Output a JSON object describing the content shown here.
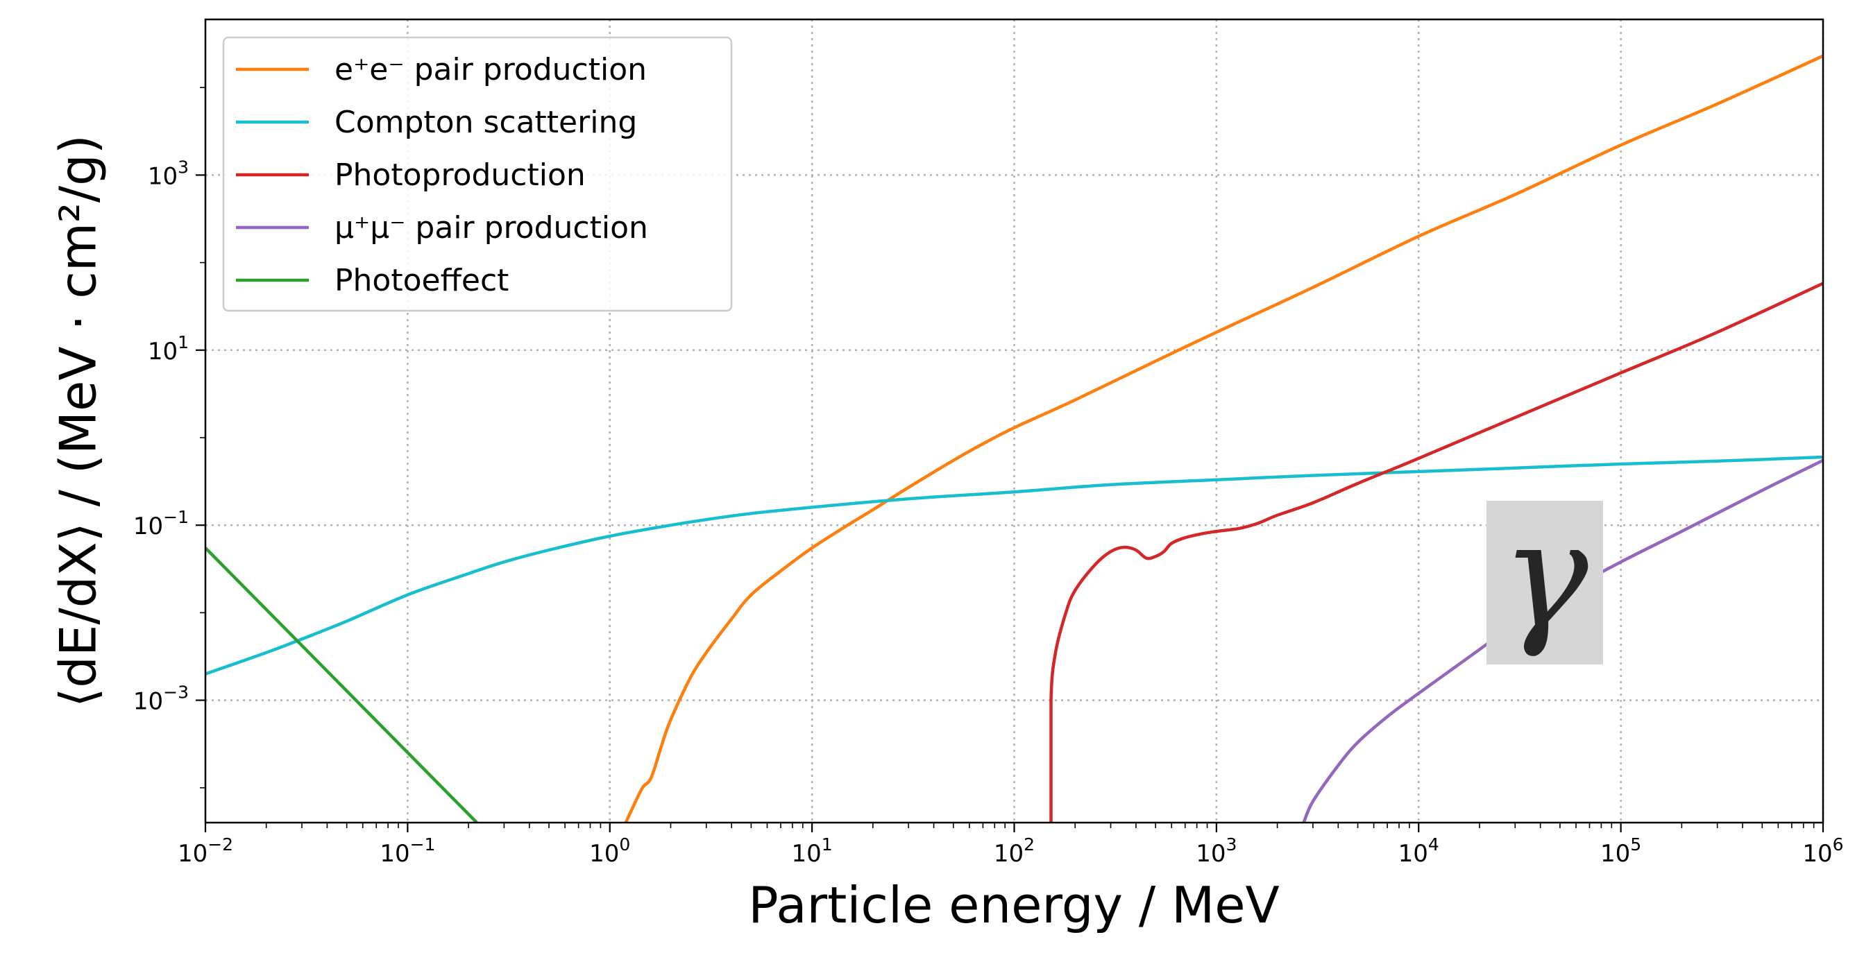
{
  "chart_data": {
    "type": "line",
    "xlabel": "Particle energy / MeV",
    "ylabel": "⟨dE/dX⟩ / (MeV · cm²/g)",
    "x_scale": "log",
    "y_scale": "log",
    "xlim": [
      0.01,
      1000000
    ],
    "ylim": [
      4e-05,
      60000
    ],
    "grid": true,
    "legend_position": "top-left",
    "x_ticks": [
      {
        "value": 0.01,
        "base": "10",
        "exp": "−2"
      },
      {
        "value": 0.1,
        "base": "10",
        "exp": "−1"
      },
      {
        "value": 1,
        "base": "10",
        "exp": "0"
      },
      {
        "value": 10,
        "base": "10",
        "exp": "1"
      },
      {
        "value": 100,
        "base": "10",
        "exp": "2"
      },
      {
        "value": 1000,
        "base": "10",
        "exp": "3"
      },
      {
        "value": 10000,
        "base": "10",
        "exp": "4"
      },
      {
        "value": 100000,
        "base": "10",
        "exp": "5"
      },
      {
        "value": 1000000,
        "base": "10",
        "exp": "6"
      }
    ],
    "y_ticks": [
      {
        "value": 0.001,
        "base": "10",
        "exp": "−3"
      },
      {
        "value": 0.1,
        "base": "10",
        "exp": "−1"
      },
      {
        "value": 10,
        "base": "10",
        "exp": "1"
      },
      {
        "value": 1000,
        "base": "10",
        "exp": "3"
      }
    ],
    "annotation": "γ",
    "series": [
      {
        "name": "e⁺e⁻ pair production",
        "color": "#ff7f0e",
        "x": [
          1.2,
          1.3,
          1.45,
          1.6,
          1.8,
          2.0,
          2.5,
          3.0,
          4.0,
          5.0,
          7.0,
          10,
          15,
          20,
          30,
          50,
          70,
          100,
          200,
          500,
          1000,
          3000,
          10000,
          30000,
          100000,
          300000,
          1000000
        ],
        "y": [
          4e-05,
          6e-05,
          0.0001,
          0.00013,
          0.0003,
          0.0006,
          0.0018,
          0.0035,
          0.0085,
          0.016,
          0.03,
          0.055,
          0.1,
          0.15,
          0.27,
          0.55,
          0.85,
          1.3,
          2.7,
          7.5,
          16,
          52,
          200,
          600,
          2200,
          6500,
          23000
        ]
      },
      {
        "name": "Compton scattering",
        "color": "#17becf",
        "x": [
          0.01,
          0.02,
          0.03,
          0.05,
          0.1,
          0.2,
          0.3,
          0.5,
          1,
          2,
          3,
          5,
          10,
          30,
          100,
          300,
          1000,
          3000,
          10000,
          30000,
          100000,
          300000,
          1000000
        ],
        "y": [
          0.002,
          0.0035,
          0.005,
          0.008,
          0.016,
          0.028,
          0.038,
          0.052,
          0.075,
          0.1,
          0.116,
          0.136,
          0.16,
          0.2,
          0.24,
          0.29,
          0.33,
          0.37,
          0.41,
          0.45,
          0.5,
          0.54,
          0.6
        ]
      },
      {
        "name": "Photoproduction",
        "color": "#d62728",
        "x": [
          152,
          152,
          160,
          180,
          200,
          250,
          300,
          350,
          400,
          450,
          500,
          550,
          600,
          700,
          850,
          1000,
          1300,
          1600,
          2000,
          3000,
          5000,
          10000,
          30000,
          100000,
          300000,
          1000000
        ],
        "y": [
          4e-05,
          0.001,
          0.0035,
          0.01,
          0.018,
          0.035,
          0.05,
          0.056,
          0.052,
          0.042,
          0.044,
          0.05,
          0.062,
          0.072,
          0.08,
          0.085,
          0.092,
          0.105,
          0.13,
          0.18,
          0.3,
          0.58,
          1.7,
          5.5,
          16,
          58
        ]
      },
      {
        "name": "μ⁺μ⁻ pair production",
        "color": "#9467bd",
        "x": [
          2700,
          3000,
          4000,
          5000,
          7000,
          10000,
          20000,
          30000,
          50000,
          100000,
          200000,
          500000,
          1000000
        ],
        "y": [
          4e-05,
          7e-05,
          0.00018,
          0.00033,
          0.00065,
          0.0012,
          0.0038,
          0.0075,
          0.016,
          0.038,
          0.085,
          0.25,
          0.55
        ]
      },
      {
        "name": "Photoeffect",
        "color": "#2ca02c",
        "x": [
          0.01,
          0.22
        ],
        "y": [
          0.055,
          4e-05
        ]
      }
    ]
  }
}
